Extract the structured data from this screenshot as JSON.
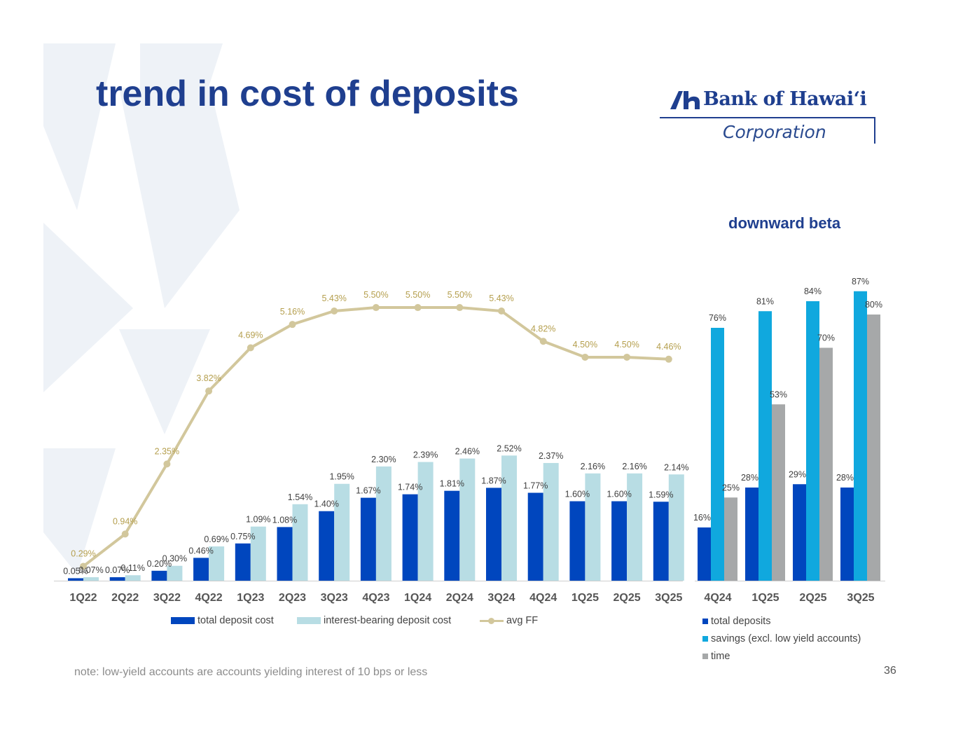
{
  "title": "trend in cost of deposits",
  "logo": {
    "name": "Bank of Hawai‘i",
    "subname": "Corporation"
  },
  "colors": {
    "accent": "#1f3f8f",
    "dark_blue": "#0046be",
    "light_blue": "#b8dde4",
    "gold": "#d2c79c",
    "cyan": "#10a8de",
    "gray": "#a6a8a9"
  },
  "footnote": "note: low-yield accounts are accounts yielding interest of 10 bps or less",
  "page_number": "36",
  "chart_data": [
    {
      "type": "bar",
      "title": "",
      "categories": [
        "1Q22",
        "2Q22",
        "3Q22",
        "4Q22",
        "1Q23",
        "2Q23",
        "3Q23",
        "4Q23",
        "1Q24",
        "2Q24",
        "3Q24",
        "4Q24",
        "1Q25",
        "2Q25",
        "3Q25"
      ],
      "unit": "%",
      "series": [
        {
          "name": "total deposit cost",
          "kind": "bar",
          "color": "#0046be",
          "values": [
            0.05,
            0.07,
            0.2,
            0.46,
            0.75,
            1.08,
            1.4,
            1.67,
            1.74,
            1.81,
            1.87,
            1.77,
            1.6,
            1.6,
            1.59
          ],
          "labels": [
            "0.05%",
            "0.07%",
            "0.20%",
            "0.46%",
            "0.75%",
            "1.08%",
            "1.40%",
            "1.67%",
            "1.74%",
            "1.81%",
            "1.87%",
            "1.77%",
            "1.60%",
            "1.60%",
            "1.59%"
          ]
        },
        {
          "name": "interest-bearing deposit cost",
          "kind": "bar",
          "color": "#b8dde4",
          "values": [
            0.07,
            0.11,
            0.3,
            0.69,
            1.09,
            1.54,
            1.95,
            2.3,
            2.39,
            2.46,
            2.52,
            2.37,
            2.16,
            2.16,
            2.14
          ],
          "labels": [
            "0.07%",
            "0.11%",
            "0.30%",
            "0.69%",
            "1.09%",
            "1.54%",
            "1.95%",
            "2.30%",
            "2.39%",
            "2.46%",
            "2.52%",
            "2.37%",
            "2.16%",
            "2.16%",
            "2.14%"
          ]
        },
        {
          "name": "avg FF",
          "kind": "line",
          "color": "#d2c79c",
          "values": [
            0.29,
            0.94,
            2.35,
            3.82,
            4.69,
            5.16,
            5.43,
            5.5,
            5.5,
            5.5,
            5.43,
            4.82,
            4.5,
            4.5,
            4.46
          ],
          "labels": [
            "0.29%",
            "0.94%",
            "2.35%",
            "3.82%",
            "4.69%",
            "5.16%",
            "5.43%",
            "5.50%",
            "5.50%",
            "5.50%",
            "5.43%",
            "4.82%",
            "4.50%",
            "4.50%",
            "4.46%"
          ]
        }
      ],
      "legend_position": "bottom",
      "grid": false
    },
    {
      "type": "bar",
      "title": "downward beta",
      "categories": [
        "4Q24",
        "1Q25",
        "2Q25",
        "3Q25"
      ],
      "unit": "%",
      "series": [
        {
          "name": "total deposits",
          "color": "#0046be",
          "values": [
            16,
            28,
            29,
            28
          ],
          "labels": [
            "16%",
            "28%",
            "29%",
            "28%"
          ]
        },
        {
          "name": "savings (excl. low yield accounts)",
          "color": "#10a8de",
          "values": [
            76,
            81,
            84,
            87
          ],
          "labels": [
            "76%",
            "81%",
            "84%",
            "87%"
          ]
        },
        {
          "name": "time",
          "color": "#a6a8a9",
          "values": [
            25,
            53,
            70,
            80
          ],
          "labels": [
            "25%",
            "53%",
            "70%",
            "80%"
          ]
        }
      ],
      "legend_position": "bottom",
      "grid": false
    }
  ]
}
